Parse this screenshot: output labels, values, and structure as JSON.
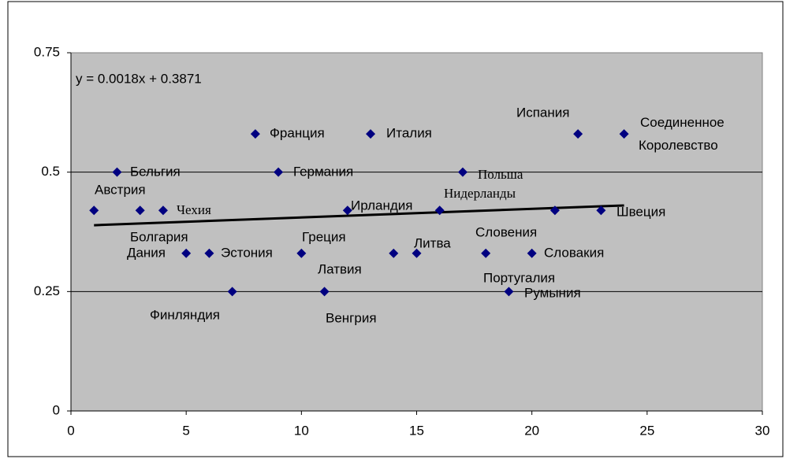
{
  "chart_data": {
    "type": "scatter",
    "annotation": "y = 0.0018x + 0.3871",
    "x": [
      1,
      2,
      3,
      4,
      5,
      6,
      7,
      8,
      9,
      10,
      11,
      12,
      13,
      14,
      15,
      16,
      17,
      18,
      19,
      20,
      21,
      22,
      23,
      24
    ],
    "values": [
      0.42,
      0.5,
      0.42,
      0.42,
      0.33,
      0.33,
      0.25,
      0.58,
      0.5,
      0.33,
      0.25,
      0.42,
      0.58,
      0.33,
      0.33,
      0.42,
      0.5,
      0.33,
      0.25,
      0.33,
      0.42,
      0.58,
      0.42,
      0.58
    ],
    "point_labels": [
      "Австрия",
      "Бельгия",
      "Болгария",
      "Чехия",
      "Дания",
      "Эстония",
      "Финляндия",
      "Франция",
      "Германия",
      "Греция",
      "Венгрия",
      "Ирландия",
      "Италия",
      "Латвия",
      "Литва",
      "Нидерланды",
      "Польша",
      "Португалия",
      "Румыния",
      "Словакия",
      "Словения",
      "Испания",
      "Швеция",
      "Соединенное Королевство"
    ],
    "color": "#000080",
    "trendline": {
      "x": [
        1,
        24
      ],
      "values": [
        0.3889,
        0.4303
      ],
      "color": "#000000"
    },
    "xlim": [
      0,
      30
    ],
    "xticks": [
      0,
      5,
      10,
      15,
      20,
      25,
      30
    ],
    "ylim": [
      0,
      0.75
    ],
    "yticks": [
      0,
      0.25,
      0.5,
      0.75
    ],
    "grid": true
  }
}
